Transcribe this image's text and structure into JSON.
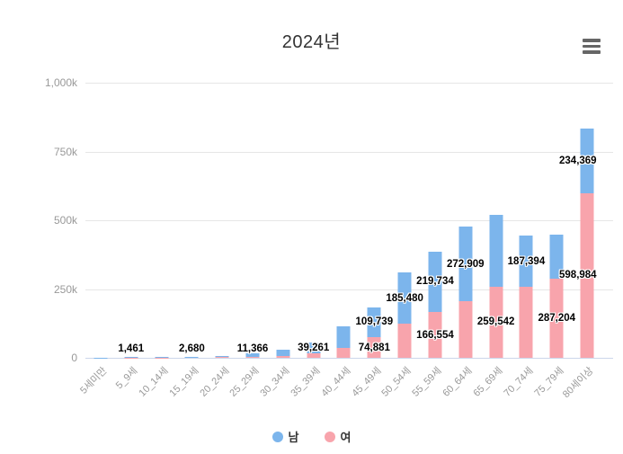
{
  "header": {
    "title": "2024년",
    "menu_icon": "hamburger"
  },
  "chart_data": {
    "type": "bar",
    "stacked": true,
    "title": "2024년",
    "categories": [
      "5세미만",
      "5_9세",
      "10_14세",
      "15_19세",
      "20_24세",
      "25_29세",
      "30_34세",
      "35_39세",
      "40_44세",
      "45_49세",
      "50_54세",
      "55_59세",
      "60_64세",
      "65_69세",
      "70_74세",
      "75_79세",
      "80세이상"
    ],
    "series": [
      {
        "name": "남",
        "color": "#7cb5ec",
        "values": [
          500,
          1461,
          2000,
          2680,
          3500,
          11366,
          22000,
          39261,
          79000,
          109739,
          185480,
          219734,
          272909,
          260000,
          187394,
          161000,
          234369
        ]
      },
      {
        "name": "여",
        "color": "#f8a4ac",
        "values": [
          400,
          1000,
          1500,
          2000,
          2500,
          4000,
          6000,
          15000,
          37000,
          74881,
          124000,
          166554,
          205000,
          259542,
          257000,
          287204,
          598984
        ]
      }
    ],
    "data_labels": [
      {
        "category": "5_9세",
        "series": "남",
        "text": "1,461"
      },
      {
        "category": "15_19세",
        "series": "남",
        "text": "2,680"
      },
      {
        "category": "25_29세",
        "series": "남",
        "text": "11,366"
      },
      {
        "category": "35_39세",
        "series": "남",
        "text": "39,261"
      },
      {
        "category": "45_49세",
        "series": "남",
        "text": "109,739"
      },
      {
        "category": "45_49세",
        "series": "여",
        "text": "74,881"
      },
      {
        "category": "50_54세",
        "series": "남",
        "text": "185,480"
      },
      {
        "category": "55_59세",
        "series": "남",
        "text": "219,734"
      },
      {
        "category": "55_59세",
        "series": "여",
        "text": "166,554"
      },
      {
        "category": "60_64세",
        "series": "남",
        "text": "272,909"
      },
      {
        "category": "65_69세",
        "series": "여",
        "text": "259,542"
      },
      {
        "category": "70_74세",
        "series": "남",
        "text": "187,394"
      },
      {
        "category": "75_79세",
        "series": "여",
        "text": "287,204"
      },
      {
        "category": "80세이상",
        "series": "남",
        "text": "234,369"
      },
      {
        "category": "80세이상",
        "series": "여",
        "text": "598,984"
      }
    ],
    "y_ticks": [
      {
        "value": 0,
        "label": "0"
      },
      {
        "value": 250000,
        "label": "250k"
      },
      {
        "value": 500000,
        "label": "500k"
      },
      {
        "value": 750000,
        "label": "750k"
      },
      {
        "value": 1000000,
        "label": "1,000k"
      }
    ],
    "ylim": [
      0,
      1000000
    ],
    "grid": true,
    "legend_position": "bottom",
    "colors": {
      "male": "#7cb5ec",
      "female": "#f8a4ac",
      "grid": "#e6e6e6",
      "axis_line": "#ccd6eb",
      "axis_text": "#999999",
      "title_text": "#333333"
    }
  }
}
